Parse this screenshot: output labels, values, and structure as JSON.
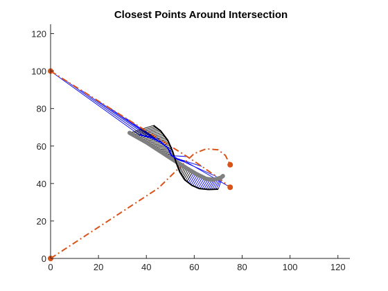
{
  "chart_data": {
    "type": "line",
    "title": "Closest Points Around Intersection",
    "xlabel": "",
    "ylabel": "",
    "xlim": [
      0,
      125
    ],
    "ylim": [
      0,
      125
    ],
    "x_ticks": [
      0,
      20,
      40,
      60,
      80,
      100,
      120
    ],
    "y_ticks": [
      0,
      20,
      40,
      60,
      80,
      100,
      120
    ],
    "grid": false,
    "legend": "none",
    "series": [
      {
        "style": "dash-dot",
        "color": "#D95319",
        "marker_endpoints": true,
        "points": [
          [
            0,
            100
          ],
          [
            14,
            88.8
          ],
          [
            28,
            77.6
          ],
          [
            42,
            66.4
          ],
          [
            56,
            55.2
          ],
          [
            61,
            51
          ],
          [
            65,
            47.5
          ],
          [
            69,
            44
          ],
          [
            72,
            41
          ],
          [
            75,
            38
          ]
        ]
      },
      {
        "style": "dash-dot",
        "color": "#D95319",
        "marker_endpoints": true,
        "points": [
          [
            0,
            0
          ],
          [
            15,
            12.5
          ],
          [
            30,
            25
          ],
          [
            45,
            37.5
          ],
          [
            55,
            50
          ],
          [
            60,
            56
          ],
          [
            65,
            58.5
          ],
          [
            70,
            58
          ],
          [
            73,
            55
          ],
          [
            75,
            50
          ]
        ]
      },
      {
        "style": "solid-thick",
        "color": "#808080",
        "points": [
          [
            33,
            67
          ],
          [
            40,
            62
          ],
          [
            46,
            57
          ],
          [
            52,
            52
          ],
          [
            57,
            48
          ],
          [
            61,
            45
          ],
          [
            65,
            42.5
          ],
          [
            68,
            42
          ],
          [
            71,
            43
          ],
          [
            72,
            44
          ]
        ]
      },
      {
        "style": "solid",
        "color": "#000000",
        "points": [
          [
            43,
            71
          ],
          [
            46,
            68
          ],
          [
            49,
            63
          ],
          [
            51,
            57
          ],
          [
            52.5,
            51
          ],
          [
            54,
            46
          ],
          [
            56,
            42
          ],
          [
            59,
            39
          ],
          [
            62,
            37.3
          ],
          [
            66,
            36.8
          ],
          [
            70,
            37
          ]
        ]
      },
      {
        "style": "solid",
        "color": "#0000FF",
        "points": [
          [
            37,
            66
          ],
          [
            42,
            64.5
          ],
          [
            46,
            62
          ],
          [
            49,
            59
          ],
          [
            50.5,
            55
          ],
          [
            53,
            53
          ],
          [
            55,
            52
          ],
          [
            56,
            52
          ]
        ]
      }
    ],
    "connections": [
      {
        "color": "#0000FF",
        "from_series": 0,
        "to_series": 4,
        "param_range": [
          0,
          1
        ],
        "count": 13
      },
      {
        "color": "#0000FF",
        "from_series": 3,
        "to_series": 2,
        "param_range": [
          0.7,
          1
        ],
        "count": 18
      },
      {
        "color": "#000000",
        "from_series": 3,
        "to_series": 2,
        "param_range": [
          0,
          0.7
        ],
        "count": 40
      }
    ]
  }
}
